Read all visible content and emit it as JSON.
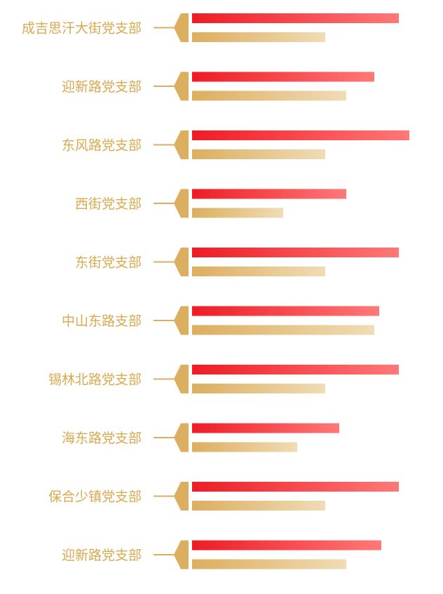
{
  "chart_data": {
    "type": "bar",
    "orientation": "horizontal",
    "categories": [
      "成吉思汗大街党支部",
      "迎新路党支部",
      "东风路党支部",
      "西街党支部",
      "东街党支部",
      "中山东路支部",
      "锡林北路党支部",
      "海东路党支部",
      "保合少镇党支部",
      "迎新路党支部"
    ],
    "series": [
      {
        "values": [
          295,
          260,
          310,
          220,
          295,
          267,
          295,
          210,
          295,
          270
        ]
      },
      {
        "values": [
          190,
          220,
          190,
          130,
          190,
          260,
          190,
          150,
          190,
          220
        ]
      }
    ],
    "xlim": [
      0,
      320
    ],
    "grid": false,
    "legend": "none",
    "colors": {
      "label": "#d9a94f",
      "connector": "#dcae5f",
      "series1_start": "#ee1c25",
      "series1_end": "#ff7878",
      "series2_start": "#dcae5f",
      "series2_end": "#f0dcb6"
    }
  }
}
